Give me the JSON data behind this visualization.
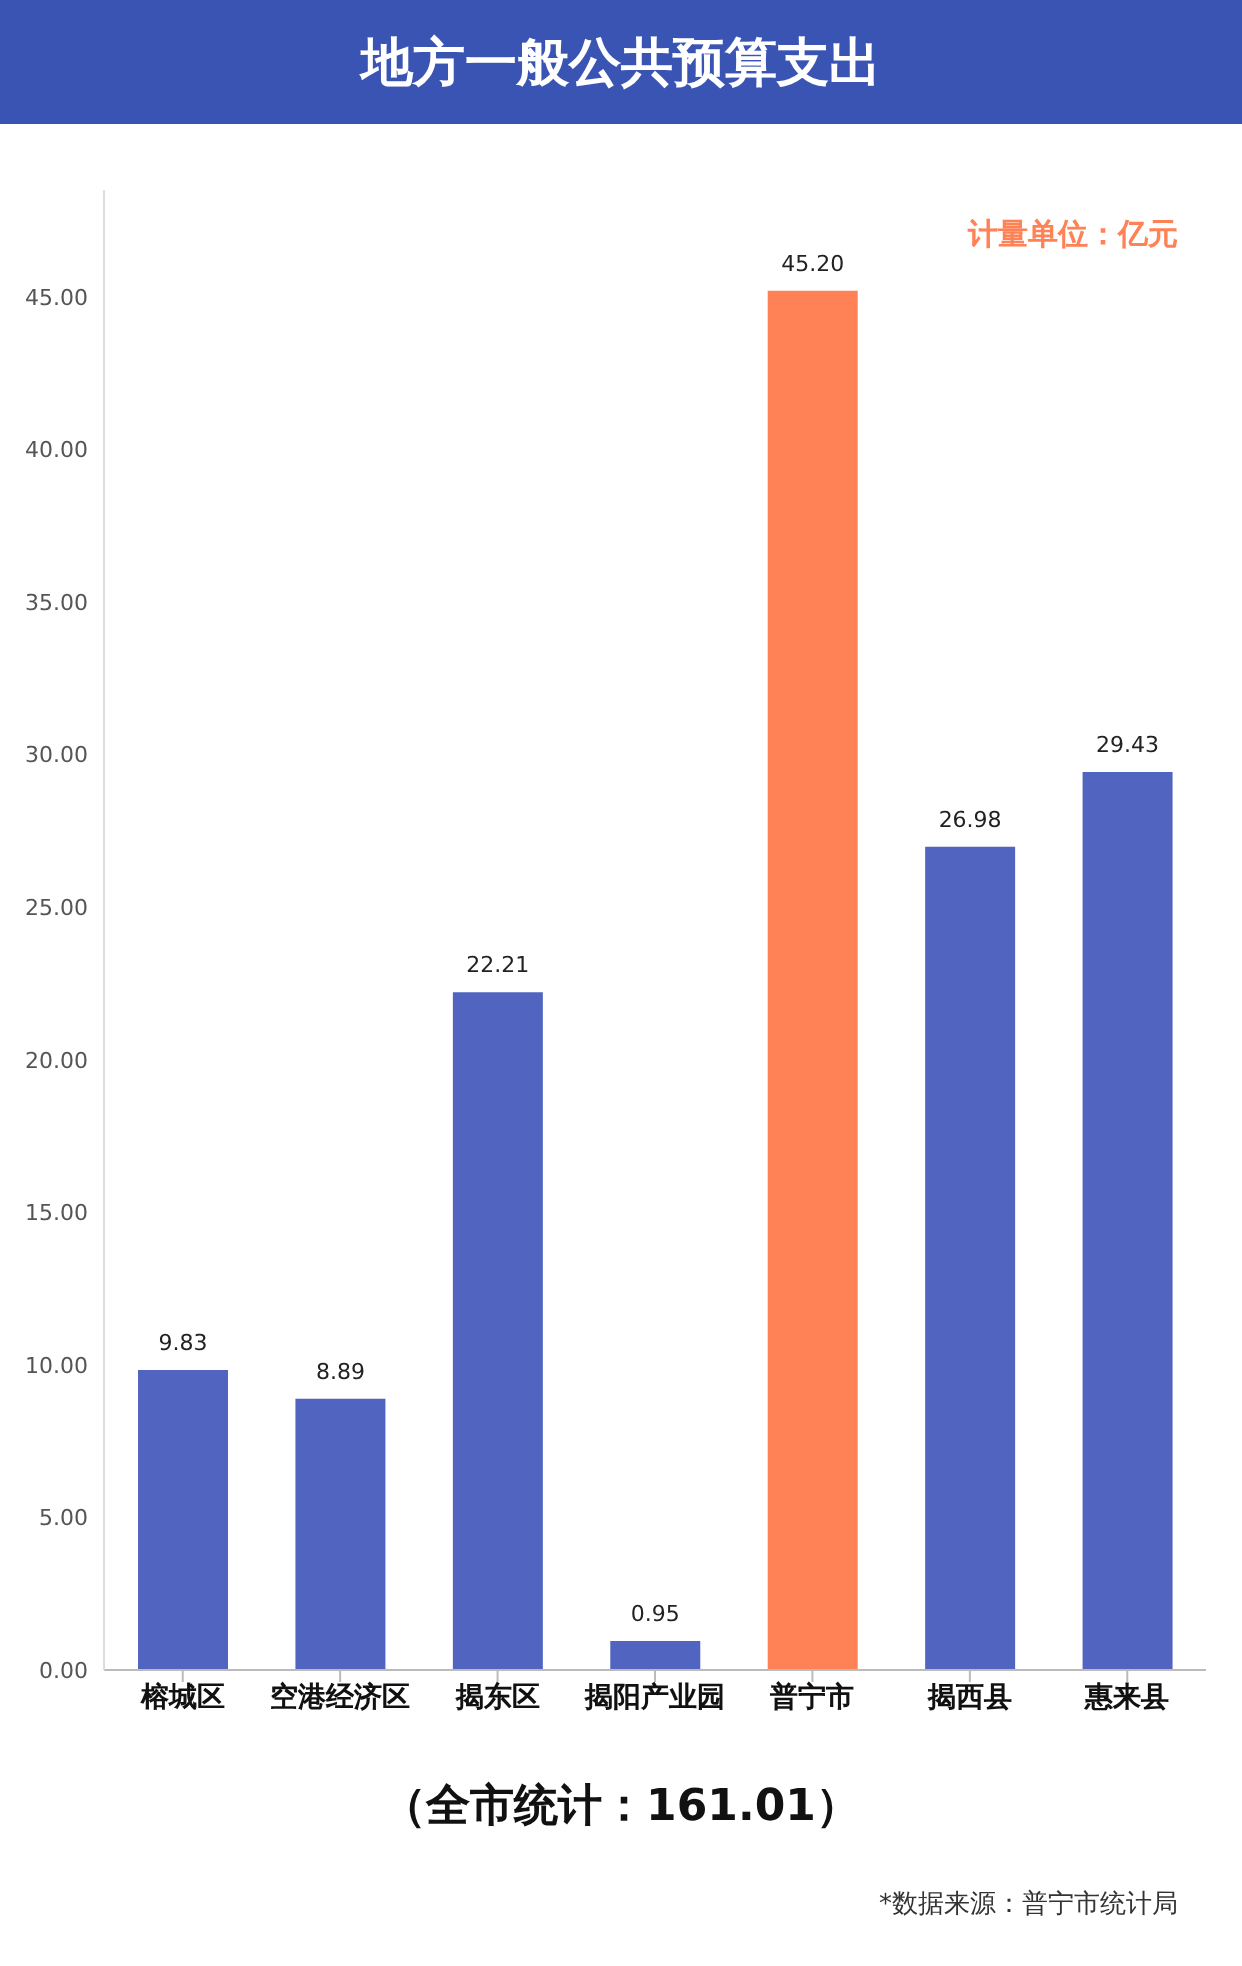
{
  "chart_data": {
    "type": "bar",
    "title": "地方一般公共预算支出",
    "categories": [
      "榕城区",
      "空港经济区",
      "揭东区",
      "揭阳产业园",
      "普宁市",
      "揭西县",
      "惠来县"
    ],
    "values": [
      9.83,
      8.89,
      22.21,
      0.95,
      45.2,
      26.98,
      29.43
    ],
    "value_labels": [
      "9.83",
      "8.89",
      "22.21",
      "0.95",
      "45.20",
      "26.98",
      "29.43"
    ],
    "colors": [
      "#5165c0",
      "#5165c0",
      "#5165c0",
      "#5165c0",
      "#ff8257",
      "#5165c0",
      "#5165c0"
    ],
    "ylim": [
      0,
      48.5
    ],
    "yticks": [
      {
        "value": 0,
        "label": "0.00"
      },
      {
        "value": 5,
        "label": "5.00"
      },
      {
        "value": 10,
        "label": "10.00"
      },
      {
        "value": 15,
        "label": "15.00"
      },
      {
        "value": 20,
        "label": "20.00"
      },
      {
        "value": 25,
        "label": "25.00"
      },
      {
        "value": 30,
        "label": "30.00"
      },
      {
        "value": 35,
        "label": "35.00"
      },
      {
        "value": 40,
        "label": "40.00"
      },
      {
        "value": 45,
        "label": "45.00"
      }
    ],
    "grid": false,
    "legend": false,
    "annotations": [
      "计量单位：亿元",
      "（全市统计：161.01）",
      "*数据来源：普宁市统计局"
    ]
  }
}
